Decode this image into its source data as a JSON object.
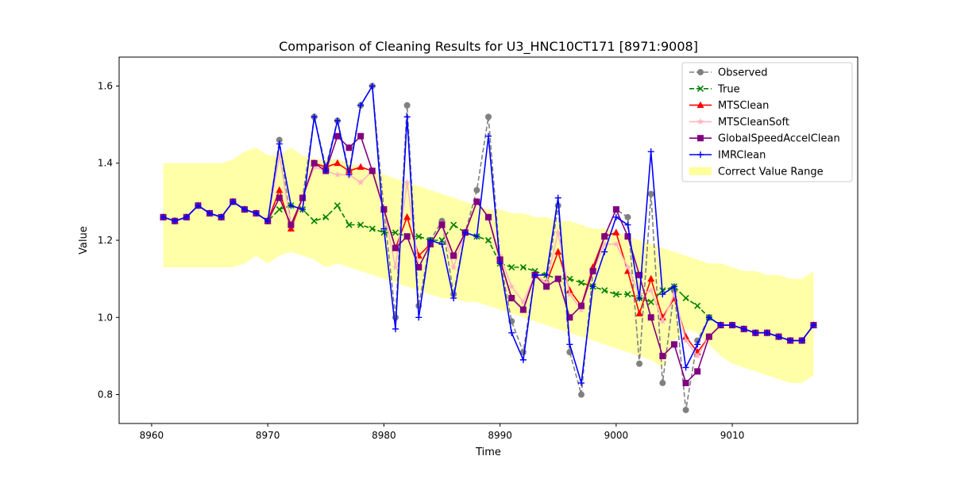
{
  "chart_data": {
    "type": "line",
    "title": "Comparison of Cleaning Results for U3_HNC10CT171 [8971:9008]",
    "xlabel": "Time",
    "ylabel": "Value",
    "xlim": [
      8957.2,
      9020.8
    ],
    "ylim": [
      0.725,
      1.675
    ],
    "xticks": [
      8960,
      8970,
      8980,
      8990,
      9000,
      9010
    ],
    "yticks": [
      0.8,
      1.0,
      1.2,
      1.4,
      1.6
    ],
    "ytick_labels": [
      "0.8",
      "1.0",
      "1.2",
      "1.4",
      "1.6"
    ],
    "grid": false,
    "legend_position": "top-right",
    "x": [
      8961,
      8962,
      8963,
      8964,
      8965,
      8966,
      8967,
      8968,
      8969,
      8970,
      8971,
      8972,
      8973,
      8974,
      8975,
      8976,
      8977,
      8978,
      8979,
      8980,
      8981,
      8982,
      8983,
      8984,
      8985,
      8986,
      8987,
      8988,
      8989,
      8990,
      8991,
      8992,
      8993,
      8994,
      8995,
      8996,
      8997,
      8998,
      8999,
      9000,
      9001,
      9002,
      9003,
      9004,
      9005,
      9006,
      9007,
      9008,
      9009,
      9010,
      9011,
      9012,
      9013,
      9014,
      9015,
      9016,
      9017
    ],
    "band": {
      "name": "Correct Value Range",
      "color": "#ffff99",
      "x": [
        8961,
        8962,
        8963,
        8964,
        8965,
        8966,
        8967,
        8968,
        8969,
        8970,
        8971,
        8972,
        8973,
        8974,
        8975,
        8976,
        8977,
        8978,
        8979,
        8980,
        8981,
        8982,
        8983,
        8984,
        8985,
        8986,
        8987,
        8988,
        8989,
        8990,
        8991,
        8992,
        8993,
        8994,
        8995,
        8996,
        8997,
        8998,
        8999,
        9000,
        9001,
        9002,
        9003,
        9004,
        9005,
        9006,
        9007,
        9008,
        9009,
        9010,
        9011,
        9012,
        9013,
        9014,
        9015,
        9016,
        9017
      ],
      "upper": [
        1.4,
        1.4,
        1.4,
        1.4,
        1.4,
        1.4,
        1.41,
        1.43,
        1.44,
        1.42,
        1.42,
        1.44,
        1.42,
        1.41,
        1.41,
        1.41,
        1.4,
        1.39,
        1.38,
        1.37,
        1.36,
        1.35,
        1.34,
        1.33,
        1.32,
        1.31,
        1.3,
        1.29,
        1.28,
        1.28,
        1.27,
        1.27,
        1.26,
        1.26,
        1.25,
        1.25,
        1.24,
        1.23,
        1.23,
        1.22,
        1.21,
        1.2,
        1.19,
        1.18,
        1.17,
        1.16,
        1.15,
        1.14,
        1.14,
        1.13,
        1.12,
        1.12,
        1.11,
        1.11,
        1.1,
        1.1,
        1.12
      ],
      "lower": [
        1.13,
        1.13,
        1.13,
        1.13,
        1.13,
        1.13,
        1.13,
        1.14,
        1.16,
        1.14,
        1.16,
        1.17,
        1.16,
        1.15,
        1.13,
        1.14,
        1.13,
        1.12,
        1.11,
        1.1,
        1.09,
        1.08,
        1.07,
        1.06,
        1.05,
        1.05,
        1.04,
        1.04,
        1.03,
        1.02,
        1.01,
        1.0,
        0.99,
        0.98,
        0.97,
        0.96,
        0.95,
        0.94,
        0.93,
        0.92,
        0.91,
        0.9,
        0.89,
        0.87,
        0.94,
        0.97,
        0.96,
        0.93,
        0.9,
        0.88,
        0.87,
        0.86,
        0.85,
        0.84,
        0.83,
        0.83,
        0.85
      ]
    },
    "series": [
      {
        "name": "Observed",
        "color": "#808080",
        "marker": "circle",
        "dashed": true,
        "values": [
          1.26,
          1.25,
          1.26,
          1.29,
          1.27,
          1.26,
          1.3,
          1.28,
          1.27,
          1.25,
          1.46,
          1.24,
          1.31,
          1.52,
          1.39,
          1.51,
          1.38,
          1.55,
          1.6,
          1.28,
          1.0,
          1.55,
          1.03,
          1.2,
          1.25,
          1.06,
          1.22,
          1.33,
          1.52,
          1.15,
          0.99,
          0.91,
          1.11,
          1.09,
          1.29,
          0.91,
          0.8,
          1.12,
          1.21,
          1.28,
          1.26,
          0.88,
          1.32,
          0.83,
          1.07,
          0.76,
          0.94,
          1.0,
          0.98,
          0.98,
          0.97,
          0.96,
          0.96,
          0.95,
          0.94,
          0.94,
          0.98
        ]
      },
      {
        "name": "True",
        "color": "#008000",
        "marker": "x",
        "dashed": true,
        "values": [
          1.26,
          1.25,
          1.26,
          1.29,
          1.27,
          1.26,
          1.3,
          1.28,
          1.27,
          1.25,
          1.28,
          1.29,
          1.28,
          1.25,
          1.26,
          1.29,
          1.24,
          1.24,
          1.23,
          1.22,
          1.22,
          1.21,
          1.21,
          1.2,
          1.2,
          1.24,
          1.22,
          1.21,
          1.2,
          1.14,
          1.13,
          1.13,
          1.12,
          1.11,
          1.1,
          1.1,
          1.09,
          1.08,
          1.07,
          1.06,
          1.06,
          1.05,
          1.04,
          1.07,
          1.08,
          1.05,
          1.03,
          1.0,
          0.98,
          0.98,
          0.97,
          0.96,
          0.96,
          0.95,
          0.94,
          0.94,
          0.98
        ]
      },
      {
        "name": "MTSClean",
        "color": "#ff0000",
        "marker": "triangle",
        "dashed": false,
        "values": [
          1.26,
          1.25,
          1.26,
          1.29,
          1.27,
          1.26,
          1.3,
          1.28,
          1.27,
          1.25,
          1.33,
          1.23,
          1.31,
          1.4,
          1.39,
          1.4,
          1.38,
          1.39,
          1.38,
          1.28,
          1.18,
          1.26,
          1.16,
          1.19,
          1.24,
          1.16,
          1.22,
          1.3,
          1.26,
          1.15,
          1.05,
          1.02,
          1.11,
          1.09,
          1.17,
          1.07,
          1.03,
          1.13,
          1.21,
          1.22,
          1.12,
          1.01,
          1.1,
          1.0,
          1.05,
          0.95,
          0.91,
          0.95,
          0.98,
          0.98,
          0.97,
          0.96,
          0.96,
          0.95,
          0.94,
          0.94,
          0.98
        ]
      },
      {
        "name": "MTSCleanSoft",
        "color": "#ffb6c1",
        "marker": "star",
        "dashed": false,
        "values": [
          1.26,
          1.25,
          1.26,
          1.29,
          1.27,
          1.26,
          1.3,
          1.28,
          1.27,
          1.25,
          1.42,
          1.24,
          1.31,
          1.39,
          1.38,
          1.37,
          1.37,
          1.35,
          1.38,
          1.28,
          1.13,
          1.35,
          1.13,
          1.19,
          1.24,
          1.13,
          1.22,
          1.3,
          1.26,
          1.16,
          1.08,
          1.04,
          1.11,
          1.09,
          1.22,
          1.06,
          1.02,
          1.12,
          1.19,
          1.19,
          1.13,
          1.06,
          1.07,
          0.99,
          1.06,
          0.94,
          0.9,
          0.95,
          0.98,
          0.98,
          0.97,
          0.96,
          0.96,
          0.95,
          0.94,
          0.94,
          0.98
        ]
      },
      {
        "name": "GlobalSpeedAccelClean",
        "color": "#800080",
        "marker": "square",
        "dashed": false,
        "values": [
          1.26,
          1.25,
          1.26,
          1.29,
          1.27,
          1.26,
          1.3,
          1.28,
          1.27,
          1.25,
          1.31,
          1.24,
          1.31,
          1.4,
          1.38,
          1.47,
          1.44,
          1.47,
          1.38,
          1.28,
          1.18,
          1.21,
          1.13,
          1.19,
          1.24,
          1.16,
          1.22,
          1.3,
          1.26,
          1.15,
          1.05,
          1.02,
          1.11,
          1.08,
          1.1,
          1.0,
          1.03,
          1.12,
          1.21,
          1.28,
          1.21,
          1.11,
          1.0,
          0.9,
          0.93,
          0.83,
          0.86,
          0.95,
          0.98,
          0.98,
          0.97,
          0.96,
          0.96,
          0.95,
          0.94,
          0.94,
          0.98
        ]
      },
      {
        "name": "IMRClean",
        "color": "#0000ff",
        "marker": "plus",
        "dashed": false,
        "values": [
          1.26,
          1.25,
          1.26,
          1.29,
          1.27,
          1.26,
          1.3,
          1.28,
          1.27,
          1.25,
          1.45,
          1.29,
          1.28,
          1.52,
          1.38,
          1.51,
          1.37,
          1.55,
          1.6,
          1.23,
          0.97,
          1.52,
          1.0,
          1.2,
          1.19,
          1.05,
          1.22,
          1.21,
          1.47,
          1.14,
          0.96,
          0.89,
          1.11,
          1.11,
          1.31,
          0.93,
          0.83,
          1.08,
          1.17,
          1.26,
          1.24,
          1.05,
          1.43,
          1.06,
          1.08,
          0.87,
          0.93,
          1.0,
          0.98,
          0.98,
          0.97,
          0.96,
          0.96,
          0.95,
          0.94,
          0.94,
          0.98
        ]
      }
    ]
  }
}
